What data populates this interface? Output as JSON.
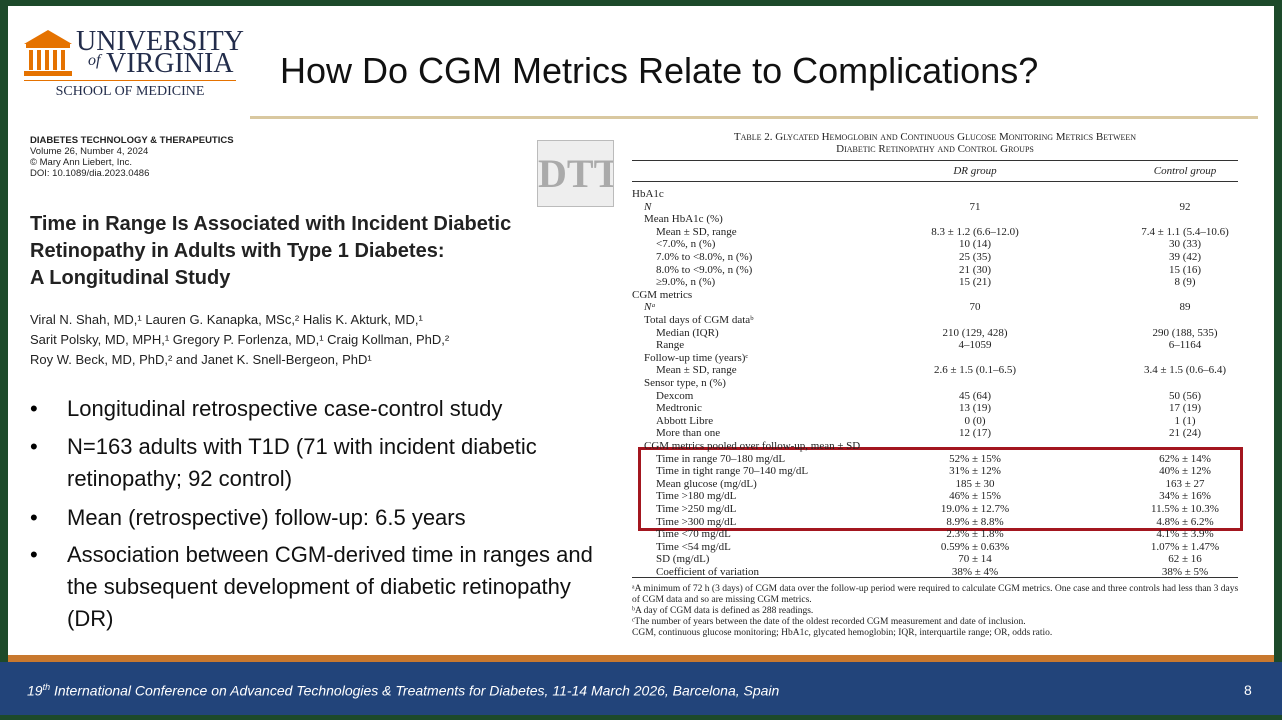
{
  "header": {
    "logo_line1": "UNIVERSITY",
    "logo_of": "of",
    "logo_line2": "VIRGINIA",
    "logo_sub": "SCHOOL OF MEDICINE",
    "title": "How Do CGM Metrics Relate to Complications?"
  },
  "paper": {
    "journal": [
      "DIABETES TECHNOLOGY & THERAPEUTICS",
      "Volume 26, Number 4, 2024",
      "© Mary Ann Liebert, Inc.",
      "DOI: 10.1089/dia.2023.0486"
    ],
    "logo": "DTT",
    "title": [
      "Time in Range Is Associated with Incident Diabetic",
      "Retinopathy in Adults with Type 1 Diabetes:",
      "A Longitudinal Study"
    ],
    "authors": [
      "Viral N. Shah, MD,¹ Lauren G. Kanapka, MSc,² Halis K. Akturk, MD,¹",
      "Sarit Polsky, MD, MPH,¹ Gregory P. Forlenza, MD,¹ Craig Kollman, PhD,²",
      "Roy W. Beck, MD, PhD,² and Janet K. Snell-Bergeon, PhD¹"
    ]
  },
  "bullets": [
    "Longitudinal retrospective case-control study",
    "N=163 adults with T1D (71 with incident diabetic retinopathy; 92 control)",
    "Mean (retrospective) follow-up: 6.5 years",
    "Association between CGM-derived time in ranges and the subsequent development of diabetic retinopathy (DR)"
  ],
  "table": {
    "caption": [
      "Table 2. Glycated Hemoglobin and Continuous Glucose Monitoring Metrics Between",
      "Diabetic Retinopathy and Control Groups"
    ],
    "columns": [
      "DR group",
      "Control group"
    ],
    "rows": [
      [
        "HbA1c"
      ],
      [
        "N",
        "71",
        "92"
      ],
      [
        "Mean HbA1c (%)"
      ],
      [
        "Mean ± SD, range",
        "8.3 ± 1.2 (6.6–12.0)",
        "7.4 ± 1.1 (5.4–10.6)"
      ],
      [
        "<7.0%, n (%)",
        "10 (14)",
        "30 (33)"
      ],
      [
        "7.0% to <8.0%, n (%)",
        "25 (35)",
        "39 (42)"
      ],
      [
        "8.0% to <9.0%, n (%)",
        "21 (30)",
        "15 (16)"
      ],
      [
        "≥9.0%, n (%)",
        "15 (21)",
        "8 (9)"
      ],
      [
        "CGM metrics"
      ],
      [
        "Nᵃ",
        "70",
        "89"
      ],
      [
        "Total days of CGM dataᵇ"
      ],
      [
        "Median (IQR)",
        "210 (129, 428)",
        "290 (188, 535)"
      ],
      [
        "Range",
        "4–1059",
        "6–1164"
      ],
      [
        "Follow-up time (years)ᶜ"
      ],
      [
        "Mean ± SD, range",
        "2.6 ± 1.5 (0.1–6.5)",
        "3.4 ± 1.5 (0.6–6.4)"
      ],
      [
        "Sensor type, n (%)"
      ],
      [
        "Dexcom",
        "45 (64)",
        "50 (56)"
      ],
      [
        "Medtronic",
        "13 (19)",
        "17 (19)"
      ],
      [
        "Abbott Libre",
        "0 (0)",
        "1 (1)"
      ],
      [
        "More than one",
        "12 (17)",
        "21 (24)"
      ],
      [
        "CGM metrics pooled over follow-up, mean ± SD"
      ],
      [
        "Time in range 70–180 mg/dL",
        "52% ± 15%",
        "62% ± 14%"
      ],
      [
        "Time in tight range 70–140 mg/dL",
        "31% ± 12%",
        "40% ± 12%"
      ],
      [
        "Mean glucose (mg/dL)",
        "185 ± 30",
        "163 ± 27"
      ],
      [
        "Time >180 mg/dL",
        "46% ± 15%",
        "34% ± 16%"
      ],
      [
        "Time >250 mg/dL",
        "19.0% ± 12.7%",
        "11.5% ± 10.3%"
      ],
      [
        "Time >300 mg/dL",
        "8.9% ± 8.8%",
        "4.8% ± 6.2%"
      ],
      [
        "Time <70 mg/dL",
        "2.3% ± 1.8%",
        "4.1% ± 3.9%"
      ],
      [
        "Time <54 mg/dL",
        "0.59% ± 0.63%",
        "1.07% ± 1.47%"
      ],
      [
        "SD (mg/dL)",
        "70 ± 14",
        "62 ± 16"
      ],
      [
        "Coefficient of variation",
        "38% ± 4%",
        "38% ± 5%"
      ]
    ],
    "footnotes": [
      "ᵃA minimum of 72 h (3 days) of CGM data over the follow-up period were required to calculate CGM metrics. One case and three controls had less than 3 days of CGM data and so are missing CGM metrics.",
      "ᵇA day of CGM data is defined as 288 readings.",
      "ᶜThe number of years between the date of the oldest recorded CGM measurement and date of inclusion.",
      "CGM, continuous glucose monitoring; HbA1c, glycated hemoglobin; IQR, interquartile range; OR, odds ratio."
    ]
  },
  "footer": {
    "conference_number": "19",
    "conference_ordinal": "th",
    "conference_text": " International Conference on Advanced Technologies & Treatments for Diabetes, 11-14 March 2026, Barcelona, Spain",
    "page": "8"
  }
}
